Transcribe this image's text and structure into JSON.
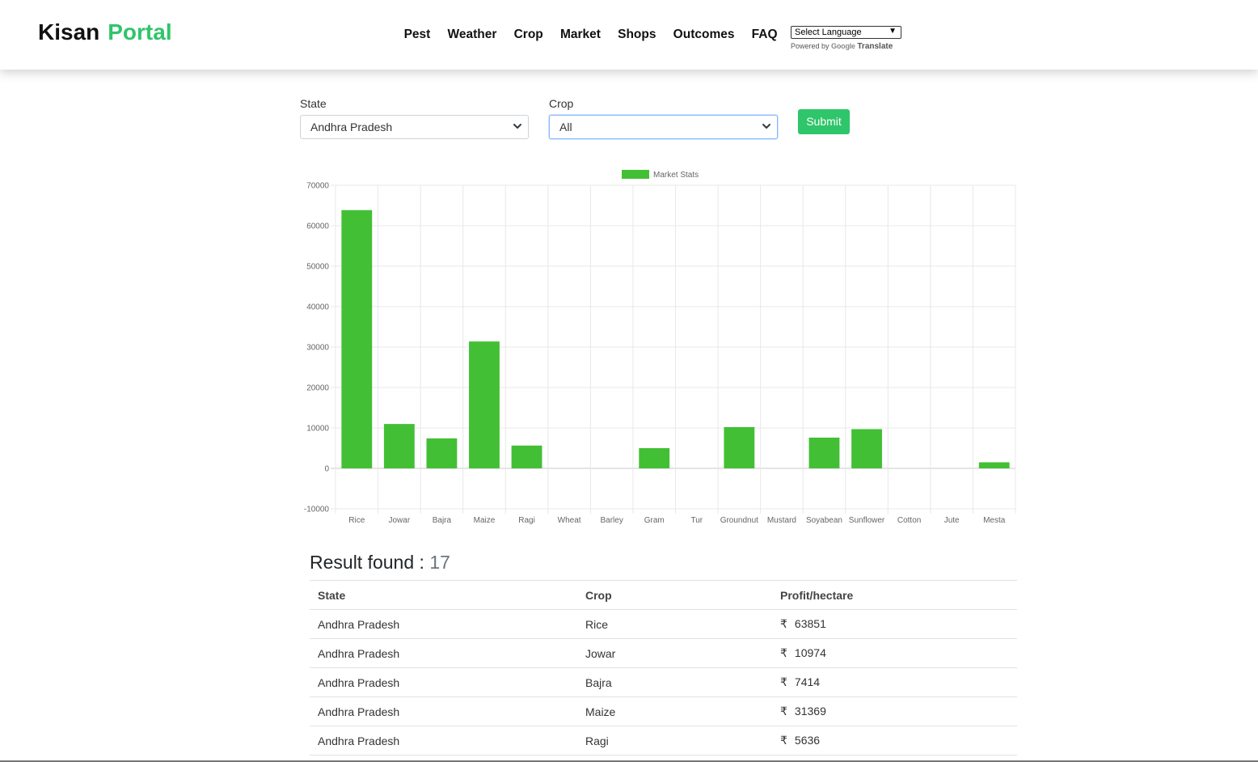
{
  "brand": {
    "part1": "Kisan",
    "part2": "Portal"
  },
  "nav": {
    "items": [
      {
        "label": "Pest"
      },
      {
        "label": "Weather"
      },
      {
        "label": "Crop"
      },
      {
        "label": "Market"
      },
      {
        "label": "Shops"
      },
      {
        "label": "Outcomes"
      },
      {
        "label": "FAQ"
      }
    ]
  },
  "translate": {
    "select_label": "Select Language",
    "powered_by": "Powered by",
    "google": "Google",
    "translate": "Translate"
  },
  "form": {
    "state_label": "State",
    "state_value": "Andhra Pradesh",
    "crop_label": "Crop",
    "crop_value": "All",
    "submit_label": "Submit"
  },
  "colors": {
    "accent": "#2fc56a",
    "bar": "#43bf35"
  },
  "chart_data": {
    "type": "bar",
    "legend": "Market Stats",
    "categories": [
      "Rice",
      "Jowar",
      "Bajra",
      "Maize",
      "Ragi",
      "Wheat",
      "Barley",
      "Gram",
      "Tur",
      "Groundnut",
      "Mustard",
      "Soyabean",
      "Sunflower",
      "Cotton",
      "Jute",
      "Mesta"
    ],
    "values": [
      63851,
      10974,
      7414,
      31369,
      5636,
      0,
      0,
      5000,
      0,
      10200,
      0,
      7600,
      9700,
      0,
      0,
      1500
    ],
    "ylim": [
      -10000,
      70000
    ],
    "yticks": [
      70000,
      60000,
      50000,
      40000,
      30000,
      20000,
      10000,
      0,
      -10000
    ]
  },
  "results": {
    "title": "Result found :",
    "count": "17",
    "headers": [
      "State",
      "Crop",
      "Profit/hectare"
    ],
    "currency": "₹",
    "rows": [
      [
        "Andhra Pradesh",
        "Rice",
        "63851"
      ],
      [
        "Andhra Pradesh",
        "Jowar",
        "10974"
      ],
      [
        "Andhra Pradesh",
        "Bajra",
        "7414"
      ],
      [
        "Andhra Pradesh",
        "Maize",
        "31369"
      ],
      [
        "Andhra Pradesh",
        "Ragi",
        "5636"
      ]
    ]
  }
}
